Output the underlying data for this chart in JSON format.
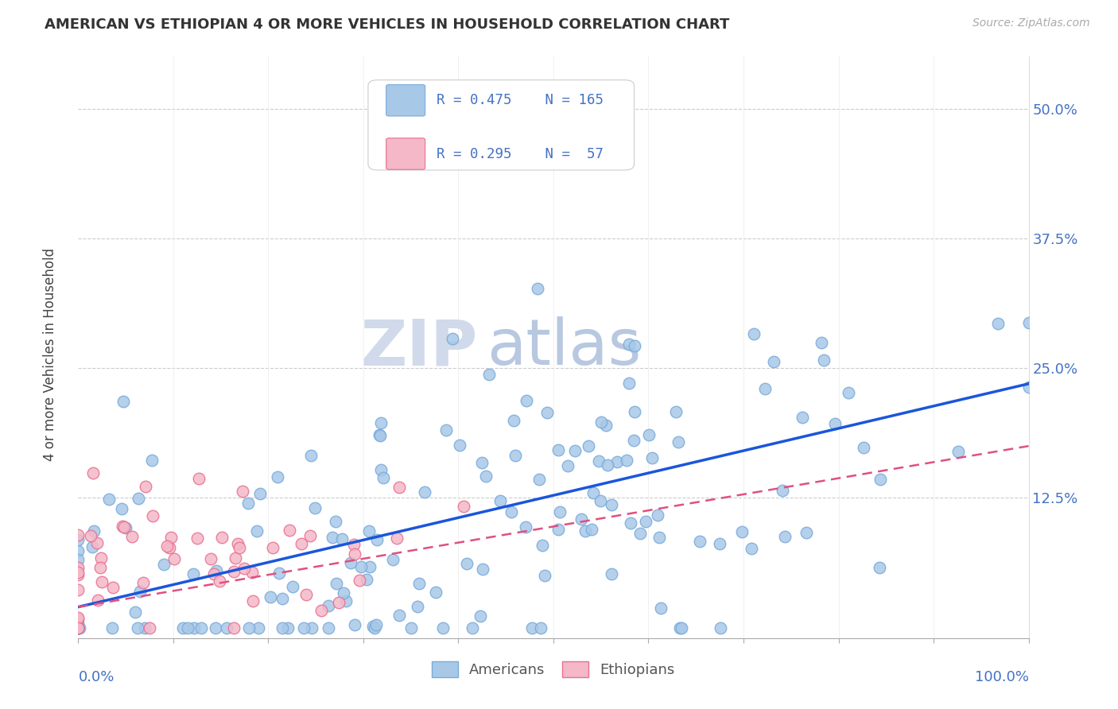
{
  "title": "AMERICAN VS ETHIOPIAN 4 OR MORE VEHICLES IN HOUSEHOLD CORRELATION CHART",
  "source": "Source: ZipAtlas.com",
  "ylabel": "4 or more Vehicles in Household",
  "american_color": "#a8c8e8",
  "american_edge_color": "#7aabda",
  "ethiopian_color": "#f4b8c8",
  "ethiopian_edge_color": "#e87090",
  "american_line_color": "#1a56db",
  "ethiopian_line_color": "#e05080",
  "watermark_color": "#d0daea",
  "background_color": "#ffffff",
  "american_R": 0.475,
  "american_N": 165,
  "ethiopian_R": 0.295,
  "ethiopian_N": 57,
  "american_slope": 0.215,
  "american_intercept": 0.02,
  "ethiopian_slope": 0.155,
  "ethiopian_intercept": 0.02
}
